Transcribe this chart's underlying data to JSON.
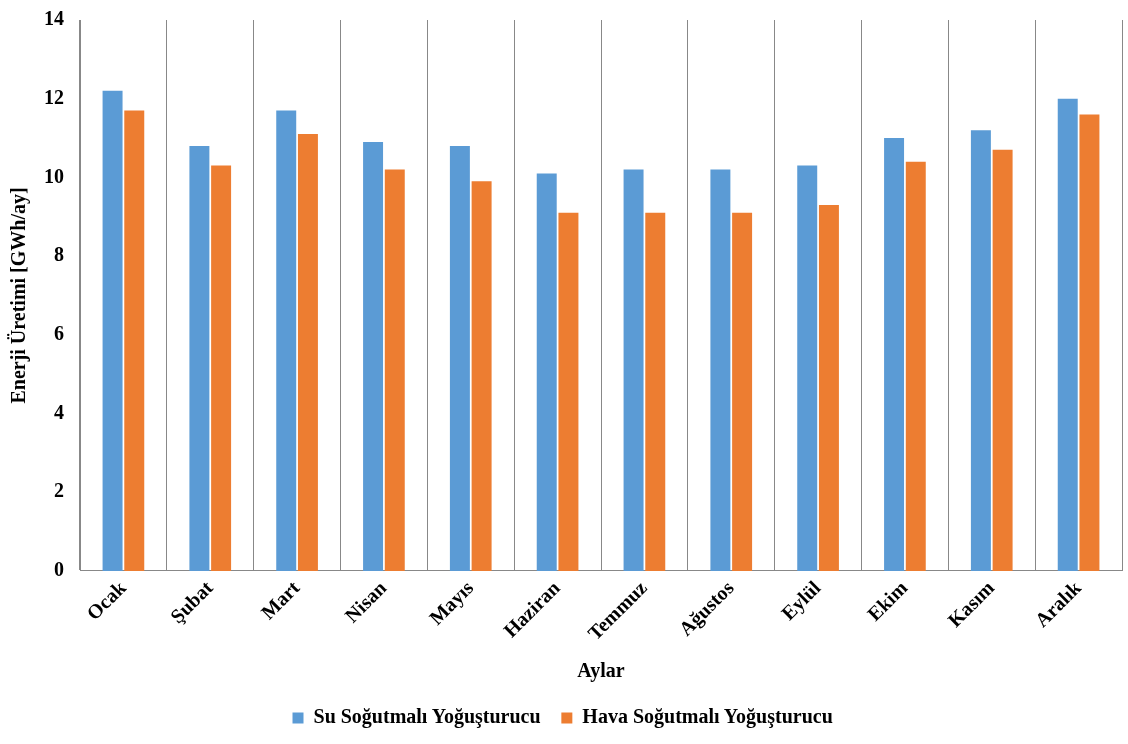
{
  "chart_data": {
    "type": "bar",
    "xlabel": "Aylar",
    "ylabel": "Enerji Üretimi [GWh/ay]",
    "categories": [
      "Ocak",
      "Şubat",
      "Mart",
      "Nisan",
      "Mayıs",
      "Haziran",
      "Temmuz",
      "Ağustos",
      "Eylül",
      "Ekim",
      "Kasım",
      "Aralık"
    ],
    "series": [
      {
        "name": "Su Soğutmalı Yoğuşturucu",
        "color": "#5b9bd5",
        "values": [
          12.2,
          10.8,
          11.7,
          10.9,
          10.8,
          10.1,
          10.2,
          10.2,
          10.3,
          11.0,
          11.2,
          12.0
        ]
      },
      {
        "name": "Hava Soğutmalı Yoğuşturucu",
        "color": "#ed7d31",
        "values": [
          11.7,
          10.3,
          11.1,
          10.2,
          9.9,
          9.1,
          9.1,
          9.1,
          9.3,
          10.4,
          10.7,
          11.6
        ]
      }
    ],
    "ylim": [
      0,
      14
    ],
    "yticks": [
      0,
      2,
      4,
      6,
      8,
      10,
      12,
      14
    ],
    "grid": "x",
    "legend": "bottom"
  }
}
